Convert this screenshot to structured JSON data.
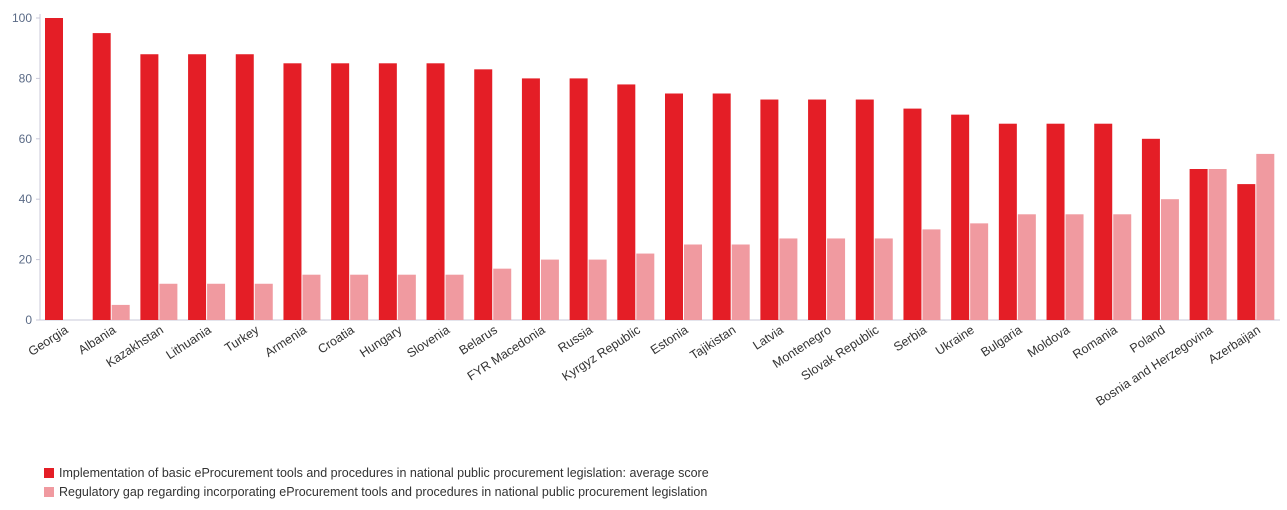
{
  "chart_data": {
    "type": "bar",
    "categories": [
      "Georgia",
      "Albania",
      "Kazakhstan",
      "Lithuania",
      "Turkey",
      "Armenia",
      "Croatia",
      "Hungary",
      "Slovenia",
      "Belarus",
      "FYR Macedonia",
      "Russia",
      "Kyrgyz Republic",
      "Estonia",
      "Tajikistan",
      "Latvia",
      "Montenegro",
      "Slovak Republic",
      "Serbia",
      "Ukraine",
      "Bulgaria",
      "Moldova",
      "Romania",
      "Poland",
      "Bosnia and Herzegovina",
      "Azerbaijan"
    ],
    "series": [
      {
        "name": "Implementation of basic eProcurement tools and procedures in national public procurement legislation: average score",
        "color": "#e41e26",
        "values": [
          100,
          95,
          88,
          88,
          88,
          85,
          85,
          85,
          85,
          83,
          80,
          80,
          78,
          75,
          75,
          73,
          73,
          73,
          70,
          68,
          65,
          65,
          65,
          60,
          50,
          45
        ]
      },
      {
        "name": "Regulatory gap regarding incorporating eProcurement tools and procedures in national public procurement legislation",
        "color": "#f09aa0",
        "values": [
          0,
          5,
          12,
          12,
          12,
          15,
          15,
          15,
          15,
          17,
          20,
          20,
          22,
          25,
          25,
          27,
          27,
          27,
          30,
          32,
          35,
          35,
          35,
          40,
          50,
          55
        ]
      }
    ],
    "yticks": [
      "0",
      "20",
      "40",
      "60",
      "80",
      "100"
    ],
    "ylim": [
      0,
      100
    ],
    "title": "",
    "xlabel": "",
    "ylabel": "",
    "grid": false,
    "legend_position": "bottom-left"
  }
}
